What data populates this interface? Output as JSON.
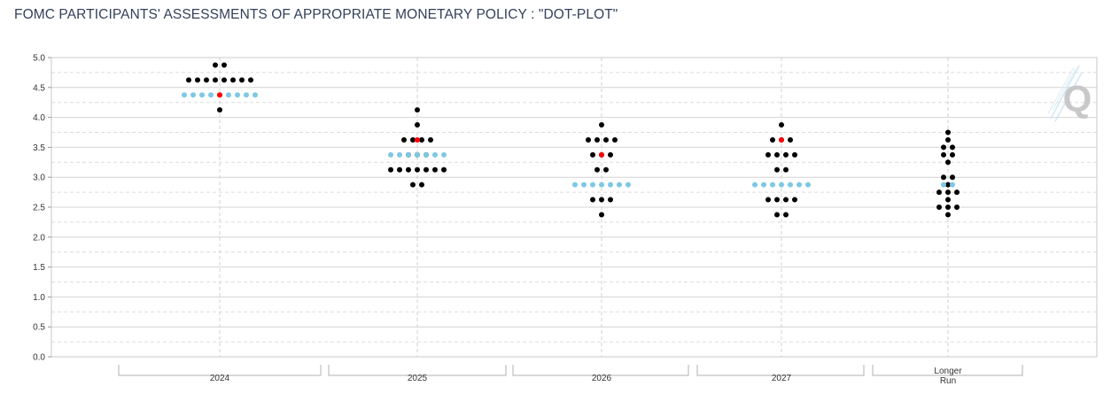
{
  "header": {
    "title": "FOMC PARTICIPANTS' ASSESSMENTS OF APPROPRIATE MONETARY POLICY : \"DOT-PLOT\""
  },
  "chart_data": {
    "type": "scatter",
    "title": "FOMC PARTICIPANTS' ASSESSMENTS OF APPROPRIATE MONETARY POLICY : \"DOT-PLOT\"",
    "ylim": [
      0,
      5
    ],
    "yticks": [
      "0.0",
      "0.5",
      "1.0",
      "1.5",
      "2.0",
      "2.5",
      "3.0",
      "3.5",
      "4.0",
      "4.5",
      "5.0"
    ],
    "grid": true,
    "categories": [
      "2024",
      "2025",
      "2026",
      "2027",
      "Longer Run"
    ],
    "series": [
      {
        "color": "#000000",
        "points": [
          {
            "category": "2024",
            "rows": [
              [
                4.875,
                2
              ],
              [
                4.625,
                8
              ],
              [
                4.125,
                1
              ]
            ]
          },
          {
            "category": "2025",
            "rows": [
              [
                4.125,
                1
              ],
              [
                3.875,
                1
              ],
              [
                3.625,
                4
              ],
              [
                3.375,
                3
              ],
              [
                3.125,
                7
              ],
              [
                2.875,
                2
              ]
            ]
          },
          {
            "category": "2026",
            "rows": [
              [
                3.875,
                1
              ],
              [
                3.625,
                4
              ],
              [
                3.375,
                3
              ],
              [
                3.125,
                2
              ],
              [
                2.625,
                3
              ],
              [
                2.375,
                1
              ]
            ]
          },
          {
            "category": "2027",
            "rows": [
              [
                3.875,
                1
              ],
              [
                3.625,
                3
              ],
              [
                3.375,
                4
              ],
              [
                3.125,
                2
              ],
              [
                2.625,
                4
              ],
              [
                2.375,
                2
              ]
            ]
          },
          {
            "category": "Longer Run",
            "rows": [
              [
                3.75,
                1
              ],
              [
                3.625,
                1
              ],
              [
                3.5,
                2
              ],
              [
                3.375,
                2
              ],
              [
                3.25,
                1
              ],
              [
                3.0,
                2
              ],
              [
                2.875,
                1
              ],
              [
                2.75,
                3
              ],
              [
                2.625,
                1
              ],
              [
                2.5,
                3
              ],
              [
                2.375,
                1
              ]
            ]
          }
        ]
      },
      {
        "color": "#7ec8e3",
        "points": [
          {
            "category": "2024",
            "rows": [
              [
                4.375,
                9
              ]
            ]
          },
          {
            "category": "2025",
            "rows": [
              [
                3.375,
                7
              ]
            ]
          },
          {
            "category": "2026",
            "rows": [
              [
                2.875,
                7
              ]
            ]
          },
          {
            "category": "2027",
            "rows": [
              [
                2.875,
                7
              ]
            ]
          },
          {
            "category": "Longer Run",
            "rows": [
              [
                2.875,
                2
              ]
            ]
          }
        ]
      },
      {
        "color": "#ff0000",
        "points": [
          {
            "category": "2024",
            "rows": [
              [
                4.375,
                1
              ]
            ]
          },
          {
            "category": "2025",
            "rows": [
              [
                3.625,
                1
              ]
            ]
          },
          {
            "category": "2026",
            "rows": [
              [
                3.375,
                1
              ]
            ]
          },
          {
            "category": "2027",
            "rows": [
              [
                3.625,
                1
              ]
            ]
          }
        ]
      }
    ]
  },
  "watermark": {
    "letter": "Q"
  }
}
